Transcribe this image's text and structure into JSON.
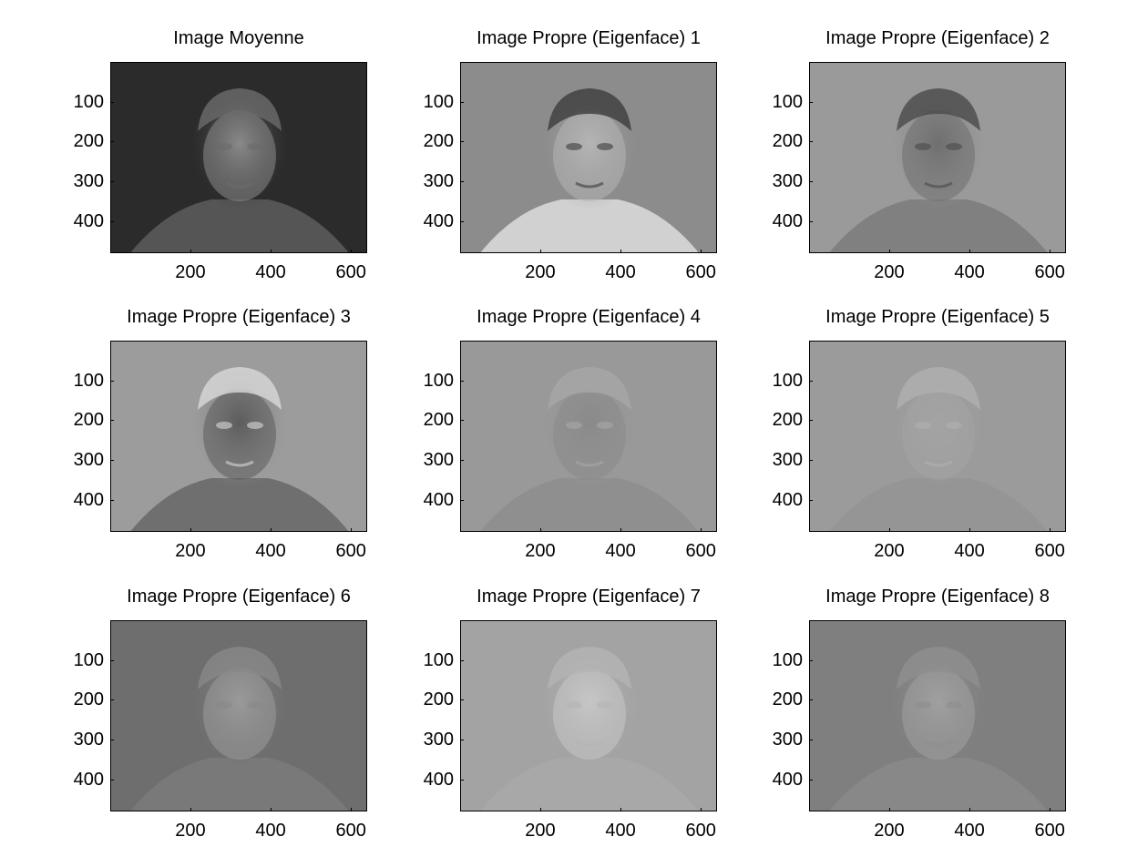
{
  "figure": {
    "colormap": "gray",
    "panels": [
      {
        "title": "Image Moyenne",
        "bg": "#2b2b2b",
        "face": "#8a8a8a",
        "hair": "#6b6b6b",
        "body": "#5a5a5a"
      },
      {
        "title": "Image Propre (Eigenface) 1",
        "bg": "#8c8c8c",
        "face": "#b5b5b5",
        "hair": "#3c3c3c",
        "body": "#d8d8d8"
      },
      {
        "title": "Image Propre (Eigenface) 2",
        "bg": "#9a9a9a",
        "face": "#6f6f6f",
        "hair": "#4a4a4a",
        "body": "#7d7d7d"
      },
      {
        "title": "Image Propre (Eigenface) 3",
        "bg": "#9c9c9c",
        "face": "#5c5c5c",
        "hair": "#d9d9d9",
        "body": "#6a6a6a"
      },
      {
        "title": "Image Propre (Eigenface) 4",
        "bg": "#999999",
        "face": "#8a8a8a",
        "hair": "#a8a8a8",
        "body": "#8e8e8e"
      },
      {
        "title": "Image Propre (Eigenface) 5",
        "bg": "#9b9b9b",
        "face": "#a4a4a4",
        "hair": "#b0b0b0",
        "body": "#959595"
      },
      {
        "title": "Image Propre (Eigenface) 6",
        "bg": "#6e6e6e",
        "face": "#9a9a9a",
        "hair": "#888888",
        "body": "#7a7a7a"
      },
      {
        "title": "Image Propre (Eigenface) 7",
        "bg": "#a3a3a3",
        "face": "#c6c6c6",
        "hair": "#b4b4b4",
        "body": "#a8a8a8"
      },
      {
        "title": "Image Propre (Eigenface) 8",
        "bg": "#7f7f7f",
        "face": "#a0a0a0",
        "hair": "#8e8e8e",
        "body": "#8a8a8a"
      }
    ],
    "yticks": [
      "100",
      "200",
      "300",
      "400"
    ],
    "xticks": [
      "200",
      "400",
      "600"
    ],
    "ytick_values": [
      100,
      200,
      300,
      400
    ],
    "xtick_values": [
      200,
      400,
      600
    ],
    "xlim": [
      0.5,
      640.5
    ],
    "ylim": [
      0.5,
      480.5
    ]
  }
}
